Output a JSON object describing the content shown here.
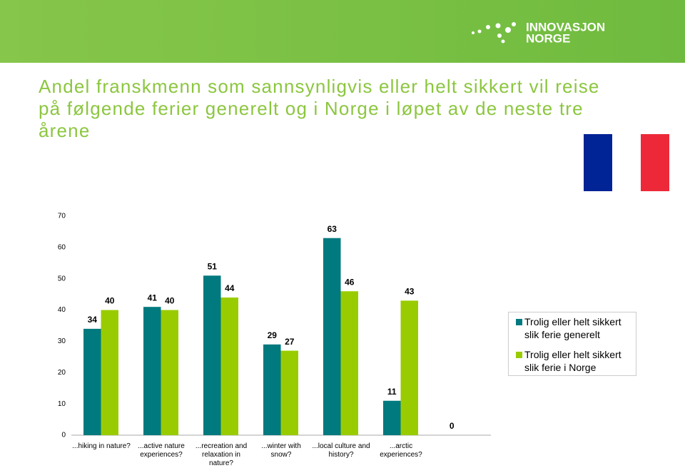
{
  "logo": [
    "INNOVASJON",
    "NORGE"
  ],
  "chart_data": {
    "type": "bar",
    "title": "Andel franskmenn som sannsynligvis eller helt sikkert vil reise på følgende ferier generelt og i Norge i løpet av de neste tre årene",
    "categories": [
      "...hiking in nature?",
      "...active nature experiences?",
      "...recreation and relaxation in nature?",
      "...winter with snow?",
      "...local culture and history?",
      "...arctic experiences?",
      null
    ],
    "series": [
      {
        "name": "Trolig eller helt sikkert slik ferie generelt",
        "color": "#00797f",
        "values": [
          34,
          41,
          51,
          29,
          63,
          11,
          0
        ]
      },
      {
        "name": "Trolig eller helt sikkert slik ferie i Norge",
        "color": "#99cc00",
        "values": [
          40,
          40,
          44,
          27,
          46,
          43,
          null
        ]
      }
    ],
    "ylim": [
      0,
      70
    ],
    "yticks": [
      0,
      10,
      20,
      30,
      40,
      50,
      60,
      70
    ],
    "grid": false,
    "legend": "right"
  }
}
